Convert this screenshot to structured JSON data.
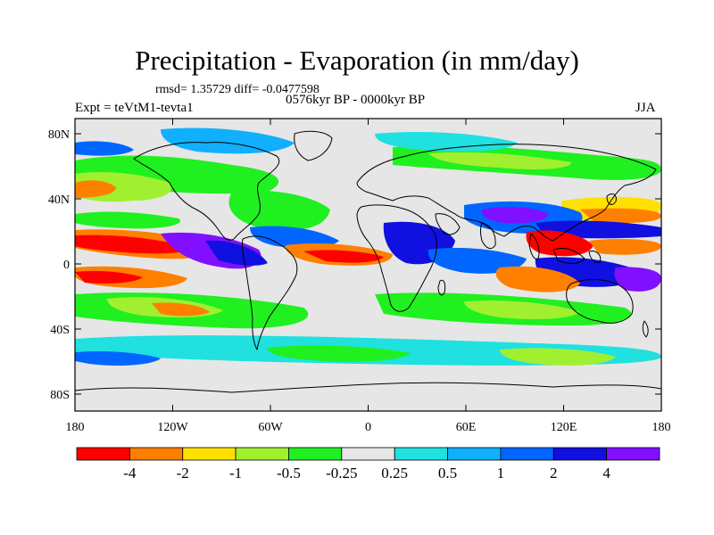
{
  "title": "Precipitation - Evaporation (in mm/day)",
  "stats_line": "rmsd= 1.35729 diff= -0.0477598",
  "period_line": "0576kyr BP - 0000kyr BP",
  "experiment_line": "Expt = teVtM1-tevta1",
  "season": "JJA",
  "axes": {
    "lat_ticks": [
      "80N",
      "40N",
      "0",
      "40S",
      "80S"
    ],
    "lon_ticks": [
      "180",
      "120W",
      "60W",
      "0",
      "60E",
      "120E",
      "180"
    ]
  },
  "colorbar": {
    "colors": [
      "#ff0000",
      "#ff8000",
      "#ffe000",
      "#a0f030",
      "#20f020",
      "#e6e6e6",
      "#20e0e0",
      "#10b0ff",
      "#0066ff",
      "#1010e0",
      "#8010ff"
    ],
    "labels": [
      "-4",
      "-2",
      "-1",
      "-0.5",
      "-0.25",
      "0.25",
      "0.5",
      "1",
      "2",
      "4"
    ]
  },
  "colors": {
    "background": "#ffffff",
    "no_change": "#e6e6e6",
    "coastline": "#000000"
  }
}
